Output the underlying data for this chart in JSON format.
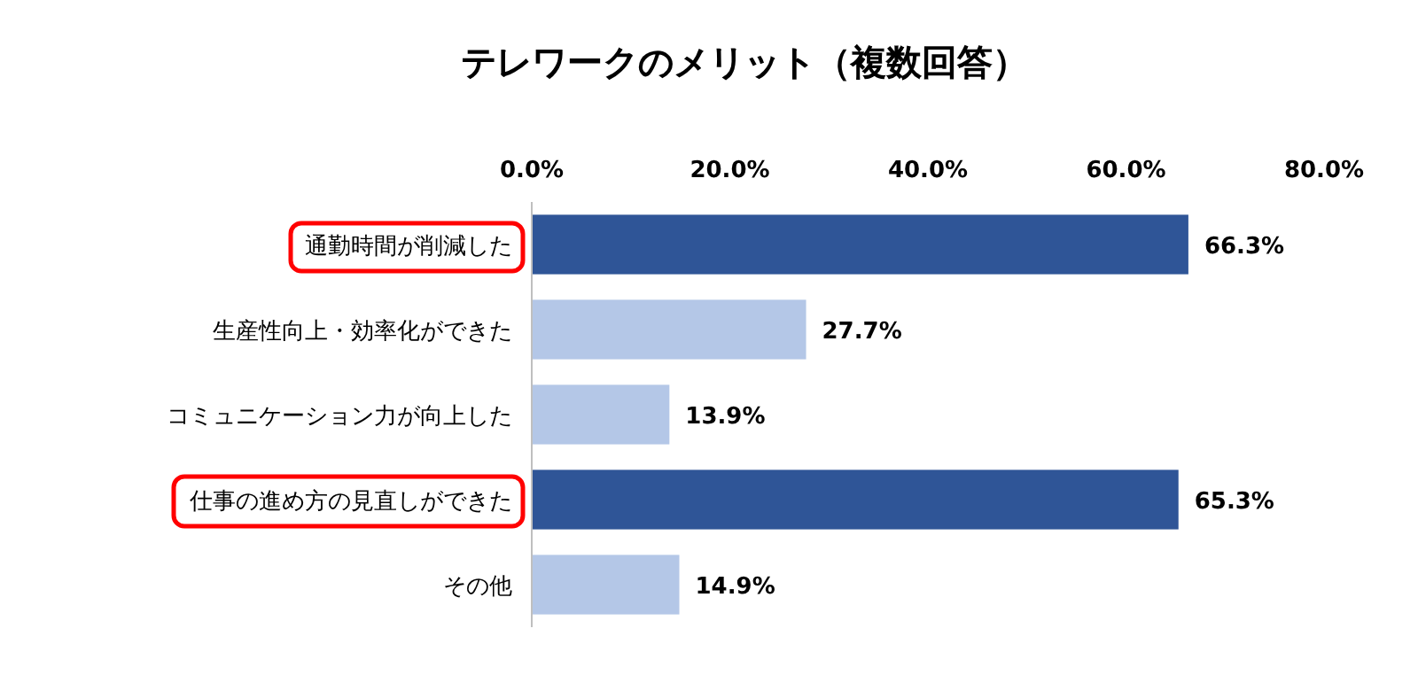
{
  "chart_data": {
    "type": "bar",
    "orientation": "horizontal",
    "title": "テレワークのメリット（複数回答）",
    "categories": [
      "通勤時間が削減した",
      "生産性向上・効率化ができた",
      "コミュニケーション力が向上した",
      "仕事の進め方の見直しができた",
      "その他"
    ],
    "values": [
      66.3,
      27.7,
      13.9,
      65.3,
      14.9
    ],
    "colors": [
      "#2f5597",
      "#b4c7e7",
      "#b4c7e7",
      "#2f5597",
      "#b4c7e7"
    ],
    "value_labels": [
      "66.3%",
      "27.7%",
      "13.9%",
      "65.3%",
      "14.9%"
    ],
    "xlim": [
      0,
      80
    ],
    "xticks": [
      {
        "value": 0,
        "label": "0.0%"
      },
      {
        "value": 20,
        "label": "20.0%"
      },
      {
        "value": 40,
        "label": "40.0%"
      },
      {
        "value": 60,
        "label": "60.0%"
      },
      {
        "value": 80,
        "label": "80.0%"
      }
    ],
    "grid": false
  }
}
